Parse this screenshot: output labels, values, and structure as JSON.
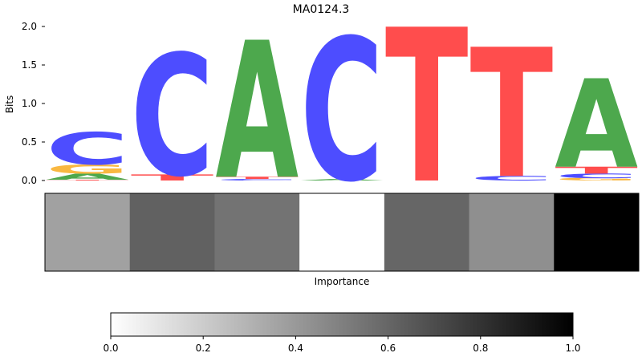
{
  "chart_data": [
    {
      "type": "sequence-logo",
      "title": "MA0124.3",
      "ylabel": "Bits",
      "ylim": [
        0,
        2.0
      ],
      "yticks": [
        "0.0",
        "0.5",
        "1.0",
        "1.5",
        "2.0"
      ],
      "ytick_values": [
        0,
        0.5,
        1.0,
        1.5,
        2.0
      ],
      "alphabet_colors": {
        "A": "#4da84d",
        "C": "#4d4dff",
        "G": "#f9b841",
        "T": "#ff4d4d"
      },
      "positions": [
        {
          "letters": [
            {
              "l": "T",
              "b": 0.01
            },
            {
              "l": "A",
              "b": 0.08
            },
            {
              "l": "G",
              "b": 0.12
            },
            {
              "l": "C",
              "b": 0.42
            }
          ]
        },
        {
          "letters": [
            {
              "l": "T",
              "b": 0.08
            },
            {
              "l": "C",
              "b": 1.58
            }
          ]
        },
        {
          "letters": [
            {
              "l": "C",
              "b": 0.02
            },
            {
              "l": "T",
              "b": 0.03
            },
            {
              "l": "A",
              "b": 1.78
            }
          ]
        },
        {
          "letters": [
            {
              "l": "A",
              "b": 0.02
            },
            {
              "l": "C",
              "b": 1.85
            }
          ]
        },
        {
          "letters": [
            {
              "l": "T",
              "b": 2.0
            }
          ]
        },
        {
          "letters": [
            {
              "l": "C",
              "b": 0.06
            },
            {
              "l": "T",
              "b": 1.68
            }
          ]
        },
        {
          "letters": [
            {
              "l": "G",
              "b": 0.03
            },
            {
              "l": "C",
              "b": 0.06
            },
            {
              "l": "T",
              "b": 0.09
            },
            {
              "l": "A",
              "b": 1.15
            }
          ]
        }
      ]
    },
    {
      "type": "heatmap",
      "xlabel": "Importance",
      "values": [
        0.37,
        0.62,
        0.55,
        0.0,
        0.6,
        0.44,
        1.0
      ],
      "cmap": "Greys"
    },
    {
      "type": "colorbar",
      "range": [
        0.0,
        1.0
      ],
      "ticks": [
        "0.0",
        "0.2",
        "0.4",
        "0.6",
        "0.8",
        "1.0"
      ],
      "tick_values": [
        0,
        0.2,
        0.4,
        0.6,
        0.8,
        1.0
      ]
    }
  ]
}
